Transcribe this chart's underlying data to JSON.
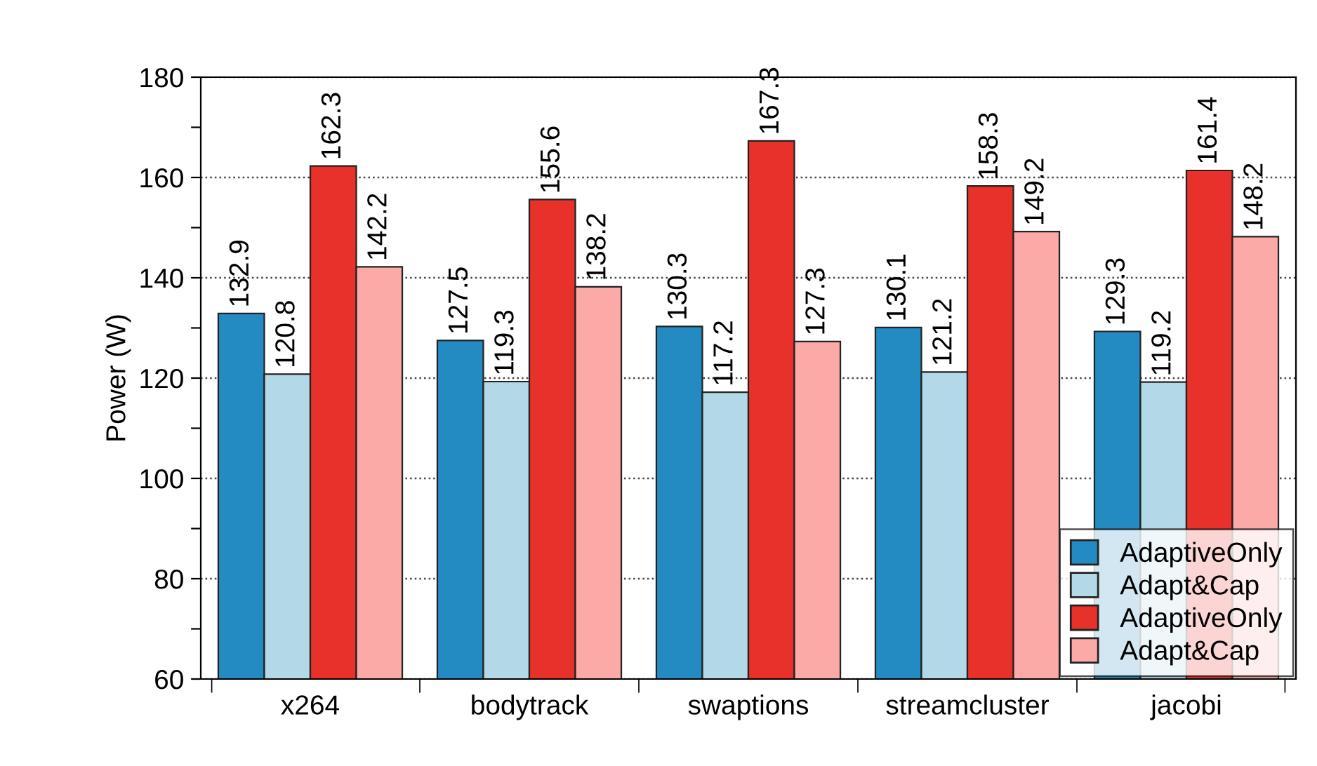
{
  "chart_data": {
    "type": "bar",
    "ylabel": "Power (W)",
    "categories": [
      "x264",
      "bodytrack",
      "swaptions",
      "streamcluster",
      "jacobi"
    ],
    "series": [
      {
        "name": "AdaptiveOnly",
        "color": "#238bc2",
        "values": [
          132.9,
          127.5,
          130.3,
          130.1,
          129.3
        ]
      },
      {
        "name": "Adapt&Cap",
        "color": "#b3d8e8",
        "values": [
          120.8,
          119.3,
          117.2,
          121.2,
          119.2
        ]
      },
      {
        "name": "AdaptiveOnly",
        "color": "#e8312a",
        "values": [
          162.3,
          155.6,
          167.3,
          158.3,
          161.4
        ]
      },
      {
        "name": "Adapt&Cap",
        "color": "#fbaaa8",
        "values": [
          142.2,
          138.2,
          127.3,
          149.2,
          148.2
        ]
      }
    ],
    "ylim": [
      60,
      180
    ],
    "yticks": [
      60,
      {
        "value": 70,
        "label": null
      },
      80,
      {
        "value": 90,
        "label": null
      },
      100,
      {
        "value": 110,
        "label": null
      },
      120,
      {
        "value": 130,
        "label": null
      },
      140,
      {
        "value": 150,
        "label": null
      },
      160,
      {
        "value": 170,
        "label": null
      },
      180
    ],
    "grid": "y",
    "legend": "bottom right",
    "data_labels": true
  }
}
